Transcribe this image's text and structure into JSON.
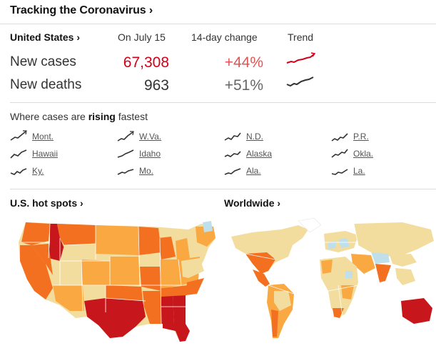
{
  "header": {
    "title": "Tracking the Coronavirus ›"
  },
  "summary": {
    "region": "United States ›",
    "date": "On July 15",
    "change_label": "14-day change",
    "trend_label": "Trend",
    "rows": [
      {
        "label": "New cases",
        "value": "67,308",
        "change": "+44%"
      },
      {
        "label": "New deaths",
        "value": "963",
        "change": "+51%"
      }
    ]
  },
  "rising": {
    "prefix": "Where cases are ",
    "bold": "rising",
    "suffix": " fastest",
    "states": [
      "Mont.",
      "W.Va.",
      "N.D.",
      "P.R.",
      "Hawaii",
      "Idaho",
      "Alaska",
      "Okla.",
      "Ky.",
      "Mo.",
      "Ala.",
      "La."
    ]
  },
  "maps": {
    "us_label": "U.S. hot spots ›",
    "world_label": "Worldwide ›"
  },
  "colors": {
    "cases_red": "#d0021b",
    "change_red": "#e05555",
    "map_dark": "#c8171c",
    "map_orange": "#f2701f",
    "map_light_orange": "#f9a842",
    "map_yellow": "#f3dd9e",
    "map_blue": "#bfe0ea"
  }
}
